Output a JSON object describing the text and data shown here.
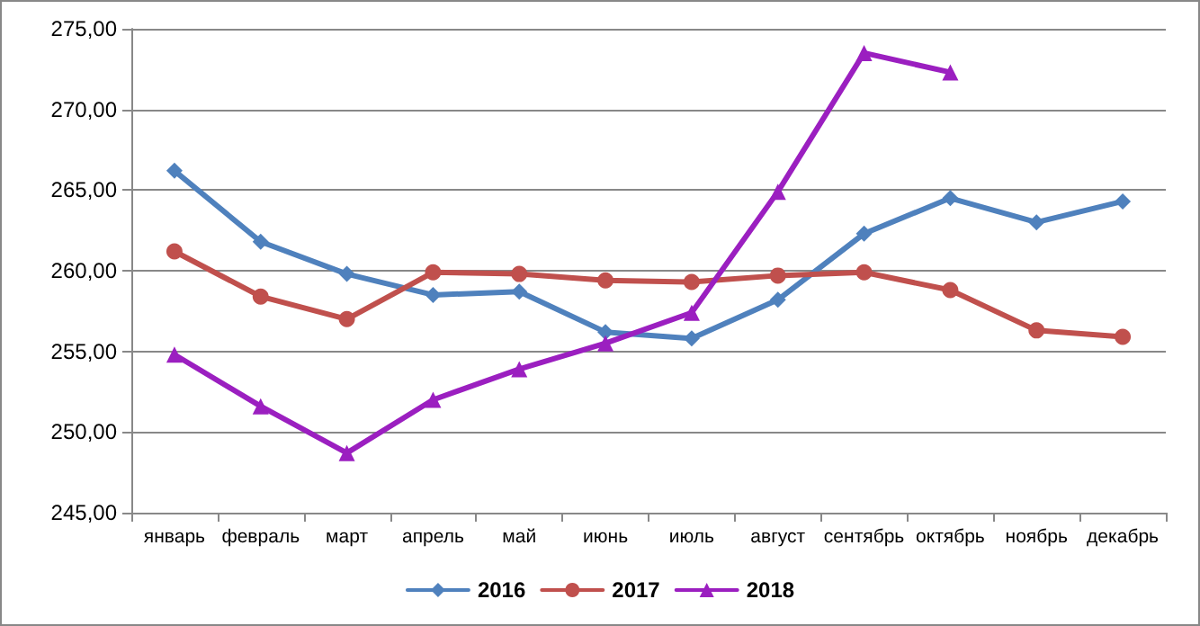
{
  "chart_data": {
    "type": "line",
    "categories": [
      "январь",
      "февраль",
      "март",
      "апрель",
      "май",
      "июнь",
      "июль",
      "август",
      "сентябрь",
      "октябрь",
      "ноябрь",
      "декабрь"
    ],
    "series": [
      {
        "name": "2016",
        "color": "#4f81bd",
        "marker": "diamond",
        "values": [
          266.2,
          261.8,
          259.8,
          258.5,
          258.7,
          256.2,
          255.8,
          258.2,
          262.3,
          264.5,
          263.0,
          264.3
        ]
      },
      {
        "name": "2017",
        "color": "#c0504d",
        "marker": "circle",
        "values": [
          261.2,
          258.4,
          257.0,
          259.9,
          259.8,
          259.4,
          259.3,
          259.7,
          259.9,
          258.8,
          256.3,
          255.9
        ]
      },
      {
        "name": "2018",
        "color": "#9b1fc0",
        "marker": "triangle",
        "values": [
          254.8,
          251.6,
          248.7,
          252.0,
          253.9,
          255.5,
          257.4,
          264.9,
          273.5,
          272.3,
          null,
          null
        ]
      }
    ],
    "ylim": [
      245,
      275
    ],
    "yticks": [
      {
        "value": 245,
        "label": "245,00"
      },
      {
        "value": 250,
        "label": "250,00"
      },
      {
        "value": 255,
        "label": "255,00"
      },
      {
        "value": 260,
        "label": "260,00"
      },
      {
        "value": 265,
        "label": "265,00"
      },
      {
        "value": 270,
        "label": "270,00"
      },
      {
        "value": 275,
        "label": "275,00"
      }
    ],
    "grid": "y",
    "legend": "bottom"
  }
}
